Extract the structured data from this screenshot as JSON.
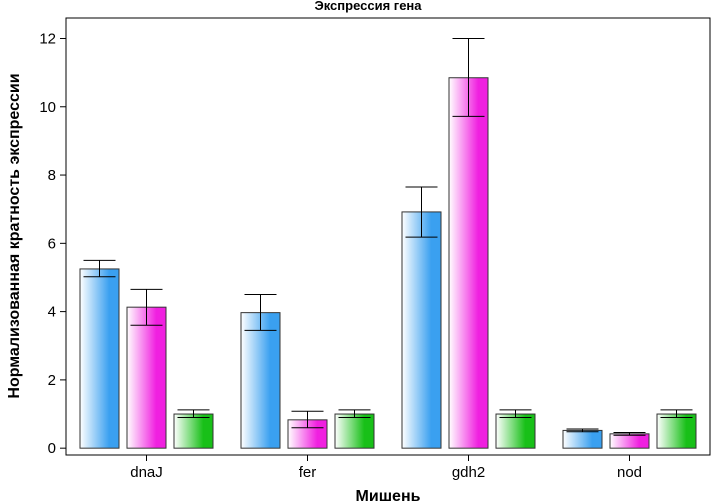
{
  "chart_data": {
    "type": "bar",
    "title": "Экспрессия гена",
    "xlabel": "Мишень",
    "ylabel": "Нормализованная кратность экспрессии",
    "categories": [
      "dnaJ",
      "fer",
      "gdh2",
      "nod"
    ],
    "ylim": [
      -0.2,
      12.6
    ],
    "yticks": [
      0,
      2,
      4,
      6,
      8,
      10,
      12
    ],
    "grid": false,
    "legend": "none",
    "series": [
      {
        "color": "#3aa0f0",
        "values": [
          5.25,
          3.97,
          6.92,
          0.52
        ],
        "err_low": [
          5.02,
          3.45,
          6.18,
          0.48
        ],
        "err_high": [
          5.5,
          4.5,
          7.65,
          0.56
        ]
      },
      {
        "color": "#f020e0",
        "values": [
          4.13,
          0.83,
          10.85,
          0.42
        ],
        "err_low": [
          3.6,
          0.6,
          9.72,
          0.38
        ],
        "err_high": [
          4.65,
          1.08,
          12.0,
          0.46
        ]
      },
      {
        "color": "#18c018",
        "values": [
          1.0,
          1.0,
          1.0,
          1.0
        ],
        "err_low": [
          0.9,
          0.9,
          0.9,
          0.9
        ],
        "err_high": [
          1.12,
          1.12,
          1.12,
          1.12
        ]
      }
    ]
  }
}
